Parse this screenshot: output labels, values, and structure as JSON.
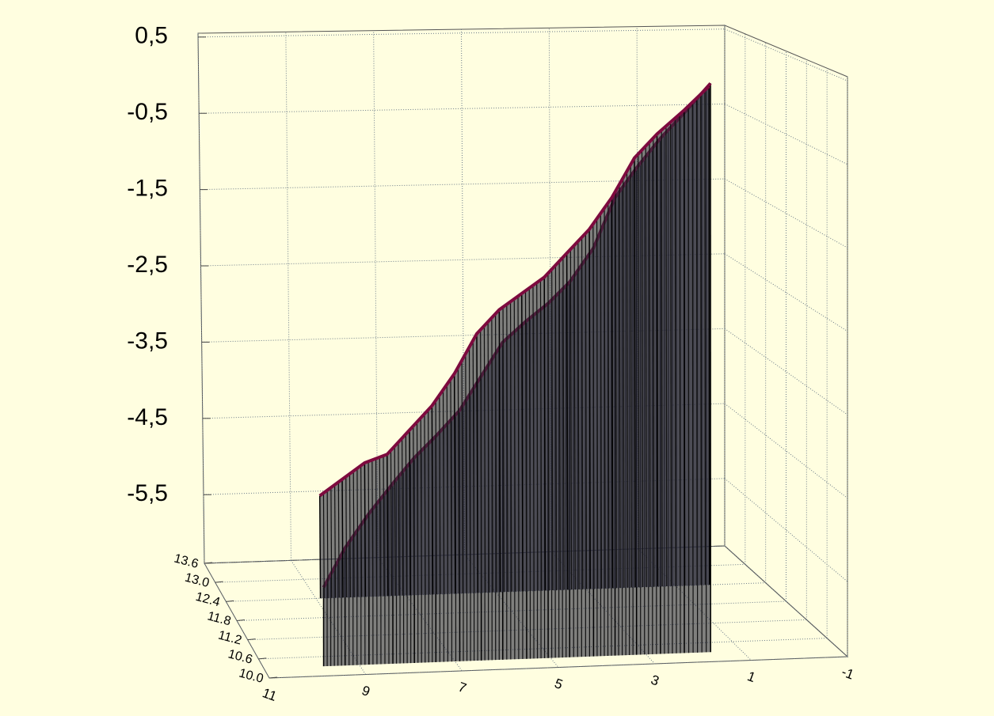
{
  "chart_data": {
    "type": "ribbon3d",
    "xlim": [
      11,
      -1
    ],
    "xticks": [
      11,
      9,
      7,
      5,
      3,
      1,
      -1
    ],
    "ylim": [
      13.6,
      10.0
    ],
    "yticks": [
      13.6,
      {
        "value": 13.0,
        "label": "13.0"
      },
      12.4,
      11.8,
      11.2,
      10.6,
      {
        "value": 10.0,
        "label": "10.0"
      }
    ],
    "zlim": [
      -6.4,
      0.55
    ],
    "zticks": [
      {
        "value": 0.5,
        "label": "0,5"
      },
      {
        "value": -0.5,
        "label": "-0,5"
      },
      {
        "value": -1.5,
        "label": "-1,5"
      },
      {
        "value": -2.5,
        "label": "-2,5"
      },
      {
        "value": -3.5,
        "label": "-3,5"
      },
      {
        "value": -4.5,
        "label": "-4,5"
      },
      {
        "value": -5.5,
        "label": "-5,5"
      }
    ],
    "grid": true,
    "wall_color": "#c4e2fa",
    "background": "#fffee0",
    "series": [
      {
        "color": "#7d0a3e",
        "depth": 12.4,
        "x": [
          8.9,
          8.4,
          7.9,
          7.4,
          6.9,
          6.4,
          5.9,
          5.4,
          4.9,
          4.4,
          3.9,
          3.4,
          2.9,
          2.4,
          1.9,
          1.4,
          0.8,
          0.25
        ],
        "values": [
          -5.1,
          -4.9,
          -4.7,
          -4.6,
          -4.3,
          -4.0,
          -3.6,
          -3.1,
          -2.8,
          -2.6,
          -2.4,
          -2.1,
          -1.8,
          -1.4,
          -0.9,
          -0.6,
          -0.3,
          0.0
        ]
      },
      {
        "color": "#7d0a3e",
        "depth": 10.3,
        "x": [
          9.75,
          9.3,
          8.8,
          8.3,
          7.85,
          7.4,
          6.9,
          6.45,
          6.0,
          5.5,
          5.05,
          4.6,
          4.1,
          3.65,
          3.2,
          2.7,
          2.2,
          1.65
        ],
        "values": [
          -5.46,
          -5.0,
          -4.6,
          -4.25,
          -3.95,
          -3.7,
          -3.4,
          -3.0,
          -2.6,
          -2.35,
          -2.15,
          -1.9,
          -1.5,
          -0.9,
          -0.55,
          -0.2,
          0.1,
          0.45
        ]
      }
    ]
  }
}
